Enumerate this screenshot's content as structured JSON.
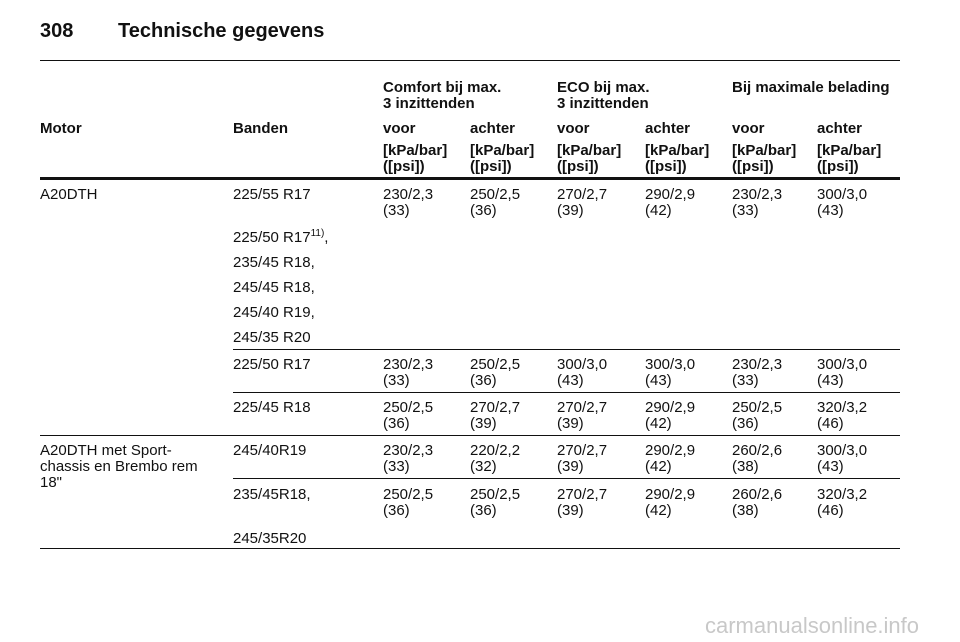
{
  "header": {
    "page_number": "308",
    "title": "Technische gegevens"
  },
  "table": {
    "group_headers": [
      [
        "Comfort bij max.",
        "3 inzittenden"
      ],
      [
        "ECO bij max.",
        "3 inzittenden"
      ],
      [
        "Bij maximale belading"
      ]
    ],
    "columns": [
      "Motor",
      "Banden",
      "voor",
      "achter",
      "voor",
      "achter",
      "voor",
      "achter"
    ],
    "units": [
      [
        "[kPa/bar]",
        "([psi])"
      ],
      [
        "[kPa/bar]",
        "([psi])"
      ],
      [
        "[kPa/bar]",
        "([psi])"
      ],
      [
        "[kPa/bar]",
        "([psi])"
      ],
      [
        "[kPa/bar]",
        "([psi])"
      ],
      [
        "[kPa/bar]",
        "([psi])"
      ]
    ],
    "rows": [
      {
        "motor": [
          "A20DTH"
        ],
        "tires": [
          {
            "text": "225/55 R17"
          }
        ],
        "cells": [
          [
            "230/2,3",
            "(33)"
          ],
          [
            "250/2,5",
            "(36)"
          ],
          [
            "270/2,7",
            "(39)"
          ],
          [
            "290/2,9",
            "(42)"
          ],
          [
            "230/2,3",
            "(33)"
          ],
          [
            "300/3,0",
            "(43)"
          ]
        ]
      },
      {
        "tires": [
          {
            "text": "225/50 R17",
            "sup": "11)",
            "suffix": ","
          },
          {
            "text": "235/45 R18,"
          },
          {
            "text": "245/45 R18,"
          },
          {
            "text": "245/40 R19,"
          },
          {
            "text": "245/35 R20"
          }
        ]
      },
      {
        "tires": [
          {
            "text": "225/50 R17"
          }
        ],
        "cells": [
          [
            "230/2,3",
            "(33)"
          ],
          [
            "250/2,5",
            "(36)"
          ],
          [
            "300/3,0",
            "(43)"
          ],
          [
            "300/3,0",
            "(43)"
          ],
          [
            "230/2,3",
            "(33)"
          ],
          [
            "300/3,0",
            "(43)"
          ]
        ]
      },
      {
        "tires": [
          {
            "text": "225/45 R18"
          }
        ],
        "cells": [
          [
            "250/2,5",
            "(36)"
          ],
          [
            "270/2,7",
            "(39)"
          ],
          [
            "270/2,7",
            "(39)"
          ],
          [
            "290/2,9",
            "(42)"
          ],
          [
            "250/2,5",
            "(36)"
          ],
          [
            "320/3,2",
            "(46)"
          ]
        ]
      },
      {
        "motor": [
          "A20DTH met Sport-",
          "chassis en Brembo rem",
          "18\""
        ],
        "tires": [
          {
            "text": "245/40R19"
          }
        ],
        "cells": [
          [
            "230/2,3",
            "(33)"
          ],
          [
            "220/2,2",
            "(32)"
          ],
          [
            "270/2,7",
            "(39)"
          ],
          [
            "290/2,9",
            "(42)"
          ],
          [
            "260/2,6",
            "(38)"
          ],
          [
            "300/3,0",
            "(43)"
          ]
        ]
      },
      {
        "tires": [
          {
            "text": "235/45R18,"
          },
          {
            "text": "245/35R20"
          }
        ],
        "cells": [
          [
            "250/2,5",
            "(36)"
          ],
          [
            "250/2,5",
            "(36)"
          ],
          [
            "270/2,7",
            "(39)"
          ],
          [
            "290/2,9",
            "(42)"
          ],
          [
            "260/2,6",
            "(38)"
          ],
          [
            "320/3,2",
            "(46)"
          ]
        ]
      }
    ]
  },
  "watermark": "carmanualsonline.info"
}
